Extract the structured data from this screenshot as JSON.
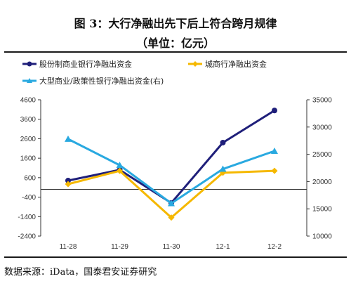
{
  "title": {
    "line1": "图 3：大行净融出先下后上符合跨月规律",
    "line2": "（单位：亿元）"
  },
  "source": "数据来源：iData，国泰君安证券研究",
  "chart_data": {
    "type": "line",
    "categories": [
      "11-28",
      "11-29",
      "11-30",
      "12-1",
      "12-2"
    ],
    "y_left": {
      "ticks": [
        "4600",
        "3600",
        "2600",
        "1600",
        "600",
        "-400",
        "-1400",
        "-2400"
      ],
      "ylim": [
        -2400,
        4600
      ]
    },
    "y_right": {
      "ticks": [
        "35000",
        "30000",
        "25000",
        "20000",
        "15000",
        "10000"
      ],
      "ylim": [
        10000,
        35000
      ]
    },
    "series": [
      {
        "name": "股份制商业银行净融出资金",
        "axis": "left",
        "color": "#1f1f7a",
        "marker": "circle",
        "values": [
          450,
          1000,
          -700,
          2400,
          4050
        ]
      },
      {
        "name": "城商行净融出资金",
        "axis": "left",
        "color": "#f5b800",
        "marker": "diamond",
        "values": [
          270,
          950,
          -1450,
          850,
          950
        ]
      },
      {
        "name": "大型商业/政策性银行净融出资金(右)",
        "axis": "right",
        "color": "#29a9e0",
        "marker": "triangle",
        "values": [
          27800,
          23000,
          16000,
          22300,
          25600
        ]
      }
    ],
    "legend": "top",
    "grid": false
  }
}
